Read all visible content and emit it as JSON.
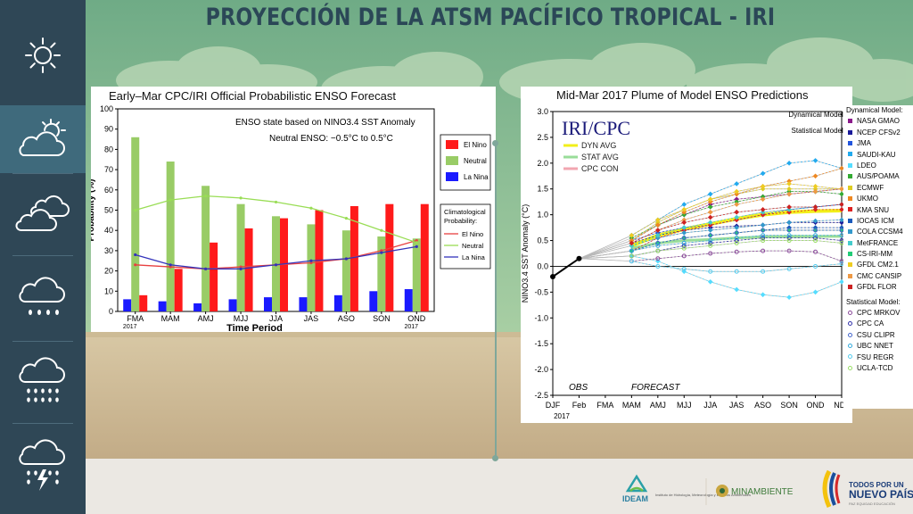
{
  "page": {
    "title": "PROYECCIÓN DE LA ATSM PACÍFICO TROPICAL - IRI"
  },
  "sidebar": {
    "items": [
      {
        "icon": "sun-icon"
      },
      {
        "icon": "partly-cloudy-icon"
      },
      {
        "icon": "cloudy-icon"
      },
      {
        "icon": "light-rain-icon"
      },
      {
        "icon": "heavy-rain-icon"
      },
      {
        "icon": "thunderstorm-icon"
      }
    ],
    "active_index": 1
  },
  "logos": {
    "ideam_name": "IDEAM",
    "ideam_subtitle": "Instituto de Hidrología, Meteorología y Estudios Ambientales",
    "minambiente": "MINAMBIENTE",
    "gov_line1": "TODOS POR UN",
    "gov_line2": "NUEVO PAÍS",
    "gov_line3": "PAZ  EQUIDAD  EDUCACIÓN"
  },
  "chart_data": [
    {
      "type": "bar",
      "title": "Early–Mar CPC/IRI Official Probabilistic ENSO Forecast",
      "xlabel": "Time Period",
      "ylabel": "Probability (%)",
      "ylim": [
        0,
        100
      ],
      "yticks": [
        "0",
        "10",
        "20",
        "30",
        "40",
        "50",
        "60",
        "70",
        "80",
        "90",
        "100"
      ],
      "categories": [
        "FMA",
        "MAM",
        "AMJ",
        "MJJ",
        "JJA",
        "JAS",
        "ASO",
        "SON",
        "OND"
      ],
      "sub_labels": {
        "first": "2017",
        "last": "2017"
      },
      "annotation_1": "ENSO state based on NINO3.4 SST Anomaly",
      "annotation_2": "Neutral ENSO: −0.5°C to 0.5°C",
      "legend_placement": "right",
      "series": [
        {
          "name": "El Nino",
          "color": "#ff1a1a",
          "values": [
            8,
            21,
            34,
            41,
            46,
            50,
            52,
            53,
            53
          ]
        },
        {
          "name": "Neutral",
          "color": "#99cc66",
          "values": [
            86,
            74,
            62,
            53,
            47,
            43,
            40,
            37,
            36
          ]
        },
        {
          "name": "La Nina",
          "color": "#1a1aff",
          "values": [
            6,
            5,
            4,
            6,
            7,
            7,
            8,
            10,
            11
          ]
        }
      ],
      "climatology": {
        "title_1": "Climatological",
        "title_2": "Probability:",
        "series": [
          {
            "name": "El Nino",
            "color": "#e84040",
            "values": [
              23,
              22,
              21,
              22,
              23,
              24,
              26,
              30,
              35
            ]
          },
          {
            "name": "Neutral",
            "color": "#99dd55",
            "values": [
              50,
              55,
              57,
              56,
              54,
              51,
              46,
              40,
              34
            ]
          },
          {
            "name": "La Nina",
            "color": "#3333bb",
            "values": [
              28,
              23,
              21,
              21,
              23,
              25,
              26,
              29,
              32
            ]
          }
        ]
      }
    },
    {
      "type": "line",
      "title": "Mid-Mar 2017 Plume of Model ENSO Predictions",
      "inner_title": "IRI/CPC",
      "ylabel": "NINO3.4 SST Anomaly (°C)",
      "ylim": [
        -2.5,
        3.0
      ],
      "yticks": [
        "3.0",
        "2.5",
        "2.0",
        "1.5",
        "1.0",
        "0.5",
        "0.0",
        "-0.5",
        "-1.0",
        "-1.5",
        "-2.0",
        "-2.5"
      ],
      "categories": [
        "DJF",
        "Feb",
        "FMA",
        "MAM",
        "AMJ",
        "MJJ",
        "JJA",
        "JAS",
        "ASO",
        "SON",
        "OND",
        "NDJ"
      ],
      "x_sub_label": "2017",
      "obs_label": "OBS",
      "forecast_label": "FORECAST",
      "observed": [
        -0.2,
        0.15
      ],
      "summary_legend": [
        {
          "name": "DYN AVG",
          "color": "#f2ef1a"
        },
        {
          "name": "STAT AVG",
          "color": "#99dd99"
        },
        {
          "name": "CPC CON",
          "color": "#f2a6b0"
        }
      ],
      "averages": {
        "DYN AVG": [
          0.4,
          0.6,
          0.72,
          0.82,
          0.92,
          1.0,
          1.05,
          1.07,
          1.08
        ],
        "STAT AVG": [
          0.35,
          0.45,
          0.5,
          0.52,
          0.55,
          0.57,
          0.58,
          0.58,
          0.58
        ]
      },
      "dynamical_title": "Dynamical Model:",
      "statistical_title": "Statistical Model:",
      "models": [
        {
          "name": "NASA GMAO",
          "kind": "dyn",
          "color": "#8a1a8a",
          "values": [
            0.5,
            0.8,
            1.0,
            1.2,
            1.3,
            1.35,
            1.4,
            1.45,
            1.5
          ]
        },
        {
          "name": "NCEP CFSv2",
          "kind": "dyn",
          "color": "#1a1a9a",
          "values": [
            0.45,
            0.6,
            0.7,
            0.75,
            0.78,
            0.8,
            0.85,
            0.85,
            0.85
          ]
        },
        {
          "name": "JMA",
          "kind": "dyn",
          "color": "#2255dd",
          "values": [
            0.5,
            0.65,
            0.75,
            0.8,
            0.9,
            1.0,
            1.1,
            1.15,
            1.2
          ]
        },
        {
          "name": "SAUDI-KAU",
          "kind": "dyn",
          "color": "#22aaee",
          "values": [
            0.6,
            0.9,
            1.2,
            1.4,
            1.6,
            1.8,
            2.0,
            2.05,
            1.9
          ]
        },
        {
          "name": "LDEO",
          "kind": "dyn",
          "color": "#55ddff",
          "values": [
            0.2,
            0.1,
            -0.1,
            -0.3,
            -0.45,
            -0.55,
            -0.6,
            -0.5,
            -0.3
          ]
        },
        {
          "name": "AUS/POAMA",
          "kind": "dyn",
          "color": "#33aa33",
          "values": [
            0.55,
            0.8,
            1.0,
            1.15,
            1.25,
            1.35,
            1.45,
            1.45,
            1.4
          ]
        },
        {
          "name": "ECMWF",
          "kind": "dyn",
          "color": "#ddcc22",
          "values": [
            0.5,
            0.85,
            1.1,
            1.3,
            1.4,
            1.5,
            1.5,
            1.5,
            1.5
          ]
        },
        {
          "name": "UKMO",
          "kind": "dyn",
          "color": "#ee8822",
          "values": [
            0.5,
            0.8,
            1.05,
            1.25,
            1.4,
            1.55,
            1.65,
            1.75,
            1.9
          ]
        },
        {
          "name": "KMA SNU",
          "kind": "dyn",
          "color": "#dd2222",
          "values": [
            0.3,
            0.55,
            0.7,
            0.8,
            0.9,
            1.0,
            1.05,
            1.1,
            1.1
          ]
        },
        {
          "name": "IOCAS ICM",
          "kind": "dyn",
          "color": "#1a5abb",
          "values": [
            0.3,
            0.45,
            0.55,
            0.6,
            0.65,
            0.7,
            0.75,
            0.75,
            0.75
          ]
        },
        {
          "name": "COLA CCSM4",
          "kind": "dyn",
          "color": "#3399cc",
          "values": [
            0.4,
            0.55,
            0.65,
            0.7,
            0.75,
            0.8,
            0.85,
            0.88,
            0.9
          ]
        },
        {
          "name": "MetFRANCE",
          "kind": "dyn",
          "color": "#44cccc",
          "values": [
            0.4,
            0.6,
            0.75,
            0.85,
            0.95,
            1.05,
            1.1,
            1.15,
            1.2
          ]
        },
        {
          "name": "CS-IRI-MM",
          "kind": "dyn",
          "color": "#22cc77",
          "values": [
            0.3,
            0.45,
            0.55,
            0.6,
            0.65,
            0.7,
            0.7,
            0.7,
            0.7
          ]
        },
        {
          "name": "GFDL CM2.1",
          "kind": "dyn",
          "color": "#eecc22",
          "values": [
            0.6,
            0.9,
            1.1,
            1.3,
            1.45,
            1.55,
            1.6,
            1.55,
            1.5
          ]
        },
        {
          "name": "CMC CANSIP",
          "kind": "dyn",
          "color": "#ee9944",
          "values": [
            0.45,
            0.7,
            0.9,
            1.05,
            1.2,
            1.3,
            1.4,
            1.45,
            1.5
          ]
        },
        {
          "name": "GFDL FLOR",
          "kind": "dyn",
          "color": "#cc2222",
          "values": [
            0.45,
            0.7,
            0.85,
            0.95,
            1.05,
            1.1,
            1.15,
            1.15,
            1.2
          ]
        },
        {
          "name": "CPC MRKOV",
          "kind": "stat",
          "color": "#8a4a9a",
          "values": [
            0.1,
            0.15,
            0.2,
            0.25,
            0.28,
            0.3,
            0.3,
            0.28,
            0.1
          ]
        },
        {
          "name": "CPC CA",
          "kind": "stat",
          "color": "#3333aa",
          "values": [
            0.2,
            0.3,
            0.4,
            0.45,
            0.5,
            0.55,
            0.55,
            0.55,
            0.5
          ]
        },
        {
          "name": "CSU CLIPR",
          "kind": "stat",
          "color": "#4466cc",
          "values": [
            0.3,
            0.45,
            0.55,
            0.6,
            0.65,
            0.7,
            0.7,
            0.7,
            0.7
          ]
        },
        {
          "name": "UBC NNET",
          "kind": "stat",
          "color": "#33aadd",
          "values": [
            0.3,
            0.4,
            0.45,
            0.5,
            0.55,
            0.6,
            0.6,
            0.6,
            0.6
          ]
        },
        {
          "name": "FSU REGR",
          "kind": "stat",
          "color": "#55ccee",
          "values": [
            0.1,
            0.0,
            -0.05,
            -0.1,
            -0.1,
            -0.1,
            -0.05,
            0.0,
            0.05
          ]
        },
        {
          "name": "UCLA-TCD",
          "kind": "stat",
          "color": "#99dd66",
          "values": [
            0.2,
            0.3,
            0.35,
            0.4,
            0.45,
            0.5,
            0.5,
            0.5,
            0.45
          ]
        }
      ]
    }
  ]
}
